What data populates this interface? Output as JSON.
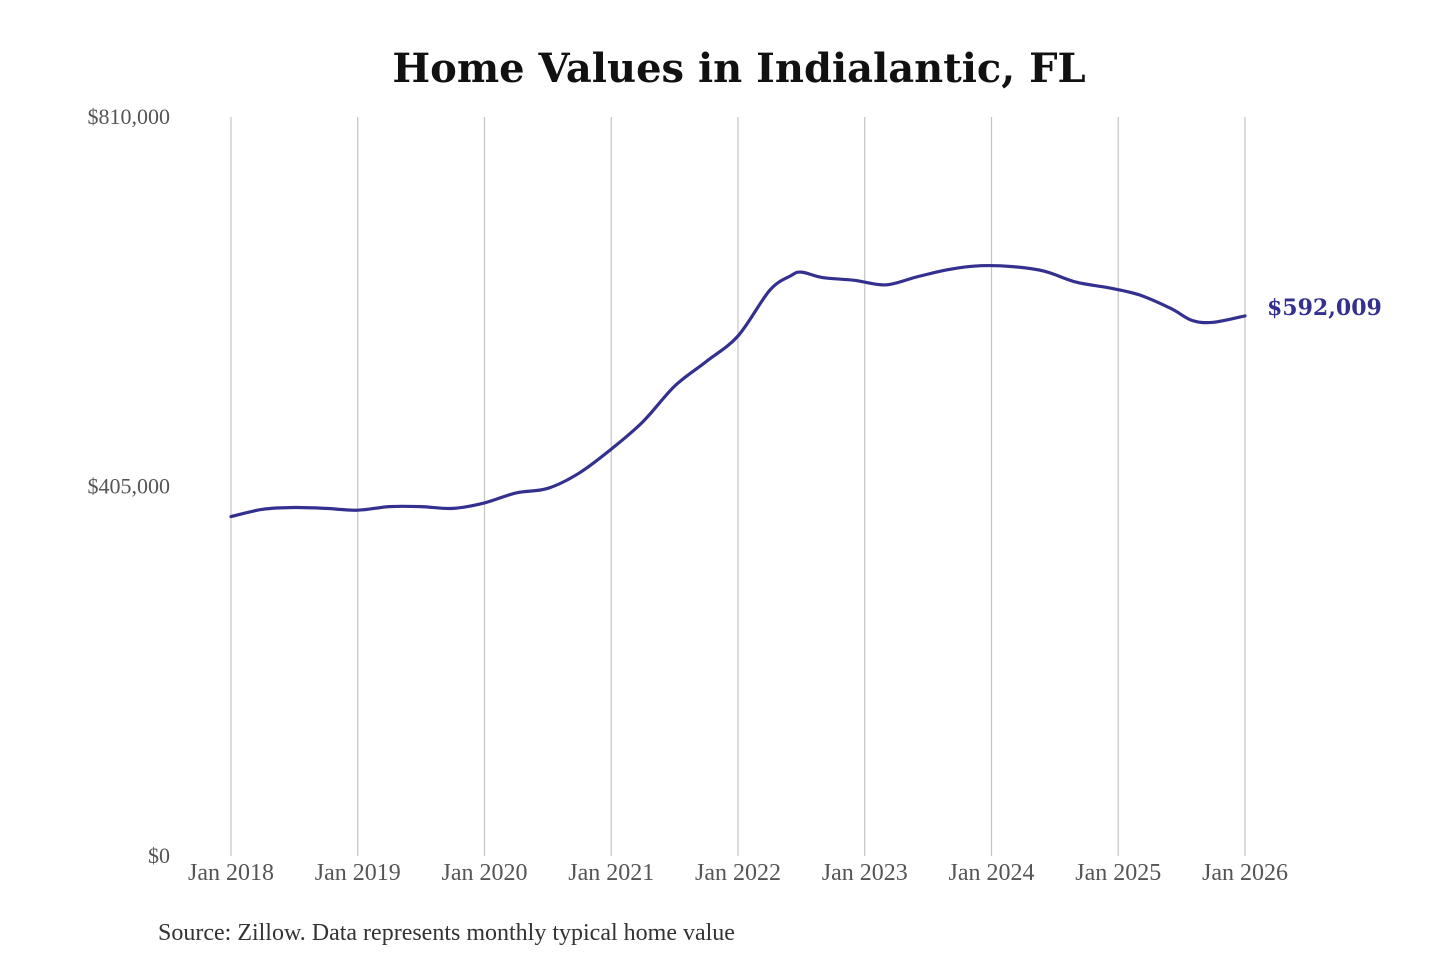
{
  "chart_data": {
    "type": "line",
    "title": "Home Values in Indialantic, FL",
    "xlabel": "",
    "ylabel": "",
    "ylim": [
      0,
      810000
    ],
    "y_ticks": [
      {
        "value": 0,
        "label": "$0"
      },
      {
        "value": 405000,
        "label": "$405,000"
      },
      {
        "value": 810000,
        "label": "$810,000"
      }
    ],
    "x_ticks": [
      {
        "value": "2018-01",
        "label": "Jan 2018"
      },
      {
        "value": "2019-01",
        "label": "Jan 2019"
      },
      {
        "value": "2020-01",
        "label": "Jan 2020"
      },
      {
        "value": "2021-01",
        "label": "Jan 2021"
      },
      {
        "value": "2022-01",
        "label": "Jan 2022"
      },
      {
        "value": "2023-01",
        "label": "Jan 2023"
      },
      {
        "value": "2024-01",
        "label": "Jan 2024"
      },
      {
        "value": "2025-01",
        "label": "Jan 2025"
      },
      {
        "value": "2026-01",
        "label": "Jan 2026"
      }
    ],
    "grid": "vertical",
    "line_color": "#34308f",
    "end_label": "$592,009",
    "series": [
      {
        "points": [
          {
            "x": "2018-01",
            "y": 372000
          },
          {
            "x": "2018-04",
            "y": 380000
          },
          {
            "x": "2018-07",
            "y": 382000
          },
          {
            "x": "2018-10",
            "y": 381000
          },
          {
            "x": "2019-01",
            "y": 379000
          },
          {
            "x": "2019-04",
            "y": 383000
          },
          {
            "x": "2019-07",
            "y": 383000
          },
          {
            "x": "2019-10",
            "y": 381000
          },
          {
            "x": "2020-01",
            "y": 387000
          },
          {
            "x": "2020-04",
            "y": 398000
          },
          {
            "x": "2020-07",
            "y": 403000
          },
          {
            "x": "2020-10",
            "y": 420000
          },
          {
            "x": "2021-01",
            "y": 446000
          },
          {
            "x": "2021-04",
            "y": 476000
          },
          {
            "x": "2021-07",
            "y": 515000
          },
          {
            "x": "2021-10",
            "y": 542000
          },
          {
            "x": "2022-01",
            "y": 570000
          },
          {
            "x": "2022-04",
            "y": 620000
          },
          {
            "x": "2022-06",
            "y": 636000
          },
          {
            "x": "2022-07",
            "y": 640000
          },
          {
            "x": "2022-09",
            "y": 634000
          },
          {
            "x": "2022-12",
            "y": 631000
          },
          {
            "x": "2023-03",
            "y": 626000
          },
          {
            "x": "2023-06",
            "y": 635000
          },
          {
            "x": "2023-09",
            "y": 643000
          },
          {
            "x": "2023-12",
            "y": 647000
          },
          {
            "x": "2024-03",
            "y": 646000
          },
          {
            "x": "2024-06",
            "y": 641000
          },
          {
            "x": "2024-09",
            "y": 629000
          },
          {
            "x": "2024-12",
            "y": 623000
          },
          {
            "x": "2025-03",
            "y": 615000
          },
          {
            "x": "2025-06",
            "y": 600000
          },
          {
            "x": "2025-08",
            "y": 587000
          },
          {
            "x": "2025-10",
            "y": 585000
          },
          {
            "x": "2026-01",
            "y": 592009
          }
        ]
      }
    ]
  },
  "source_note": "Source: Zillow. Data represents monthly typical home value"
}
